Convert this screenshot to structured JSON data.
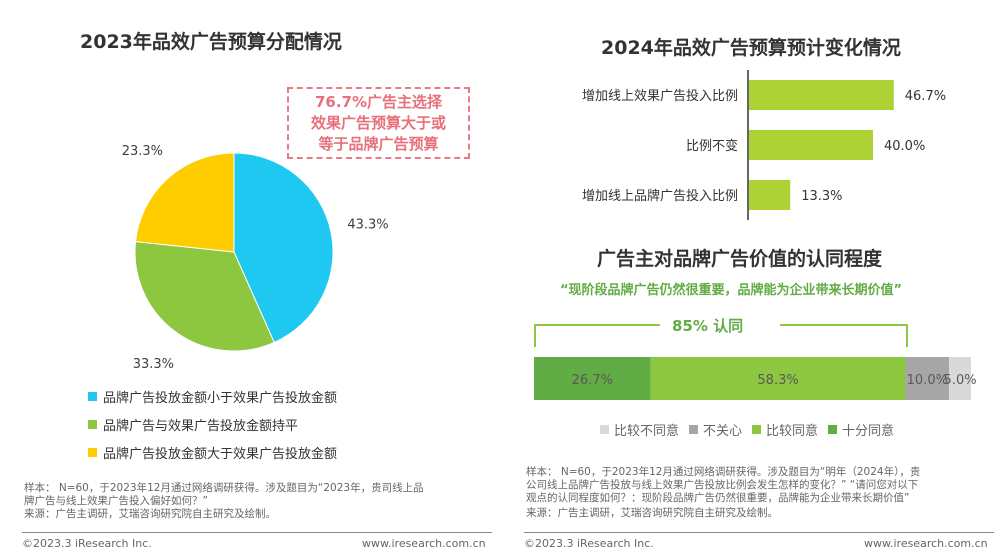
{
  "left": {
    "title": "2023年品效广告预算分配情况",
    "callout": [
      "76.7%广告主选择",
      "效果广告预算大于或",
      "等于品牌广告预算"
    ],
    "notes": [
      "样本： N=60，于2023年12月通过网络调研获得。涉及题目为“2023年，贵司线上品",
      "牌广告与线上效果广告投入偏好如何？”",
      "来源：广告主调研，艾瑞咨询研究院自主研究及绘制。"
    ],
    "copyright": "©2023.3 iResearch Inc.",
    "url": "www.iresearch.com.cn"
  },
  "right": {
    "title1": "2024年品效广告预算预计变化情况",
    "title2": "广告主对品牌广告价值的认同程度",
    "quote": "“现阶段品牌广告仍然很重要，品牌能为企业带来长期价值”",
    "agree_label": "85% 认同",
    "notes": [
      "样本： N=60，于2023年12月通过网络调研获得。涉及题目为“明年（2024年），贵",
      "公司线上品牌广告投放与线上效果广告投放比例会发生怎样的变化？” “请问您对以下",
      "观点的认同程度如何？：现阶段品牌广告仍然很重要，品牌能为企业带来长期价值”",
      "来源：广告主调研，艾瑞咨询研究院自主研究及绘制。"
    ],
    "copyright": "©2023.3 iResearch Inc.",
    "url": "www.iresearch.com.cn"
  },
  "chart_data": [
    {
      "type": "pie",
      "title": "2023年品效广告预算分配情况",
      "slices": [
        {
          "name": "品牌广告投放金额小于效果广告投放金额",
          "value": 43.3,
          "label": "43.3%",
          "color": "#1fc8f0"
        },
        {
          "name": "品牌广告与效果广告投放金额持平",
          "value": 33.3,
          "label": "33.3%",
          "color": "#8dc63f"
        },
        {
          "name": "品牌广告投放金额大于效果广告投放金额",
          "value": 23.3,
          "label": "23.3%",
          "color": "#ffcc00"
        }
      ],
      "legend": "bottom"
    },
    {
      "type": "bar",
      "orientation": "horizontal",
      "title": "2024年品效广告预算预计变化情况",
      "categories": [
        "增加线上效果广告投入比例",
        "比例不变",
        "增加线上品牌广告投入比例"
      ],
      "values": [
        46.7,
        40.0,
        13.3
      ],
      "labels": [
        "46.7%",
        "40.0%",
        "13.3%"
      ],
      "color": "#acd235"
    },
    {
      "type": "bar",
      "orientation": "stacked-horizontal",
      "title": "广告主对品牌广告价值的认同程度",
      "series": [
        {
          "name": "十分同意",
          "value": 26.7,
          "label": "26.7%",
          "color": "#62ac45"
        },
        {
          "name": "比较同意",
          "value": 58.3,
          "label": "58.3%",
          "color": "#8dc63f"
        },
        {
          "name": "不关心",
          "value": 10.0,
          "label": "10.0%",
          "color": "#a6a6a6"
        },
        {
          "name": "比较不同意",
          "value": 5.0,
          "label": "5.0%",
          "color": "#d9d9d9"
        }
      ],
      "legend_order": [
        "比较不同意",
        "不关心",
        "比较同意",
        "十分同意"
      ],
      "legend": "bottom"
    }
  ]
}
